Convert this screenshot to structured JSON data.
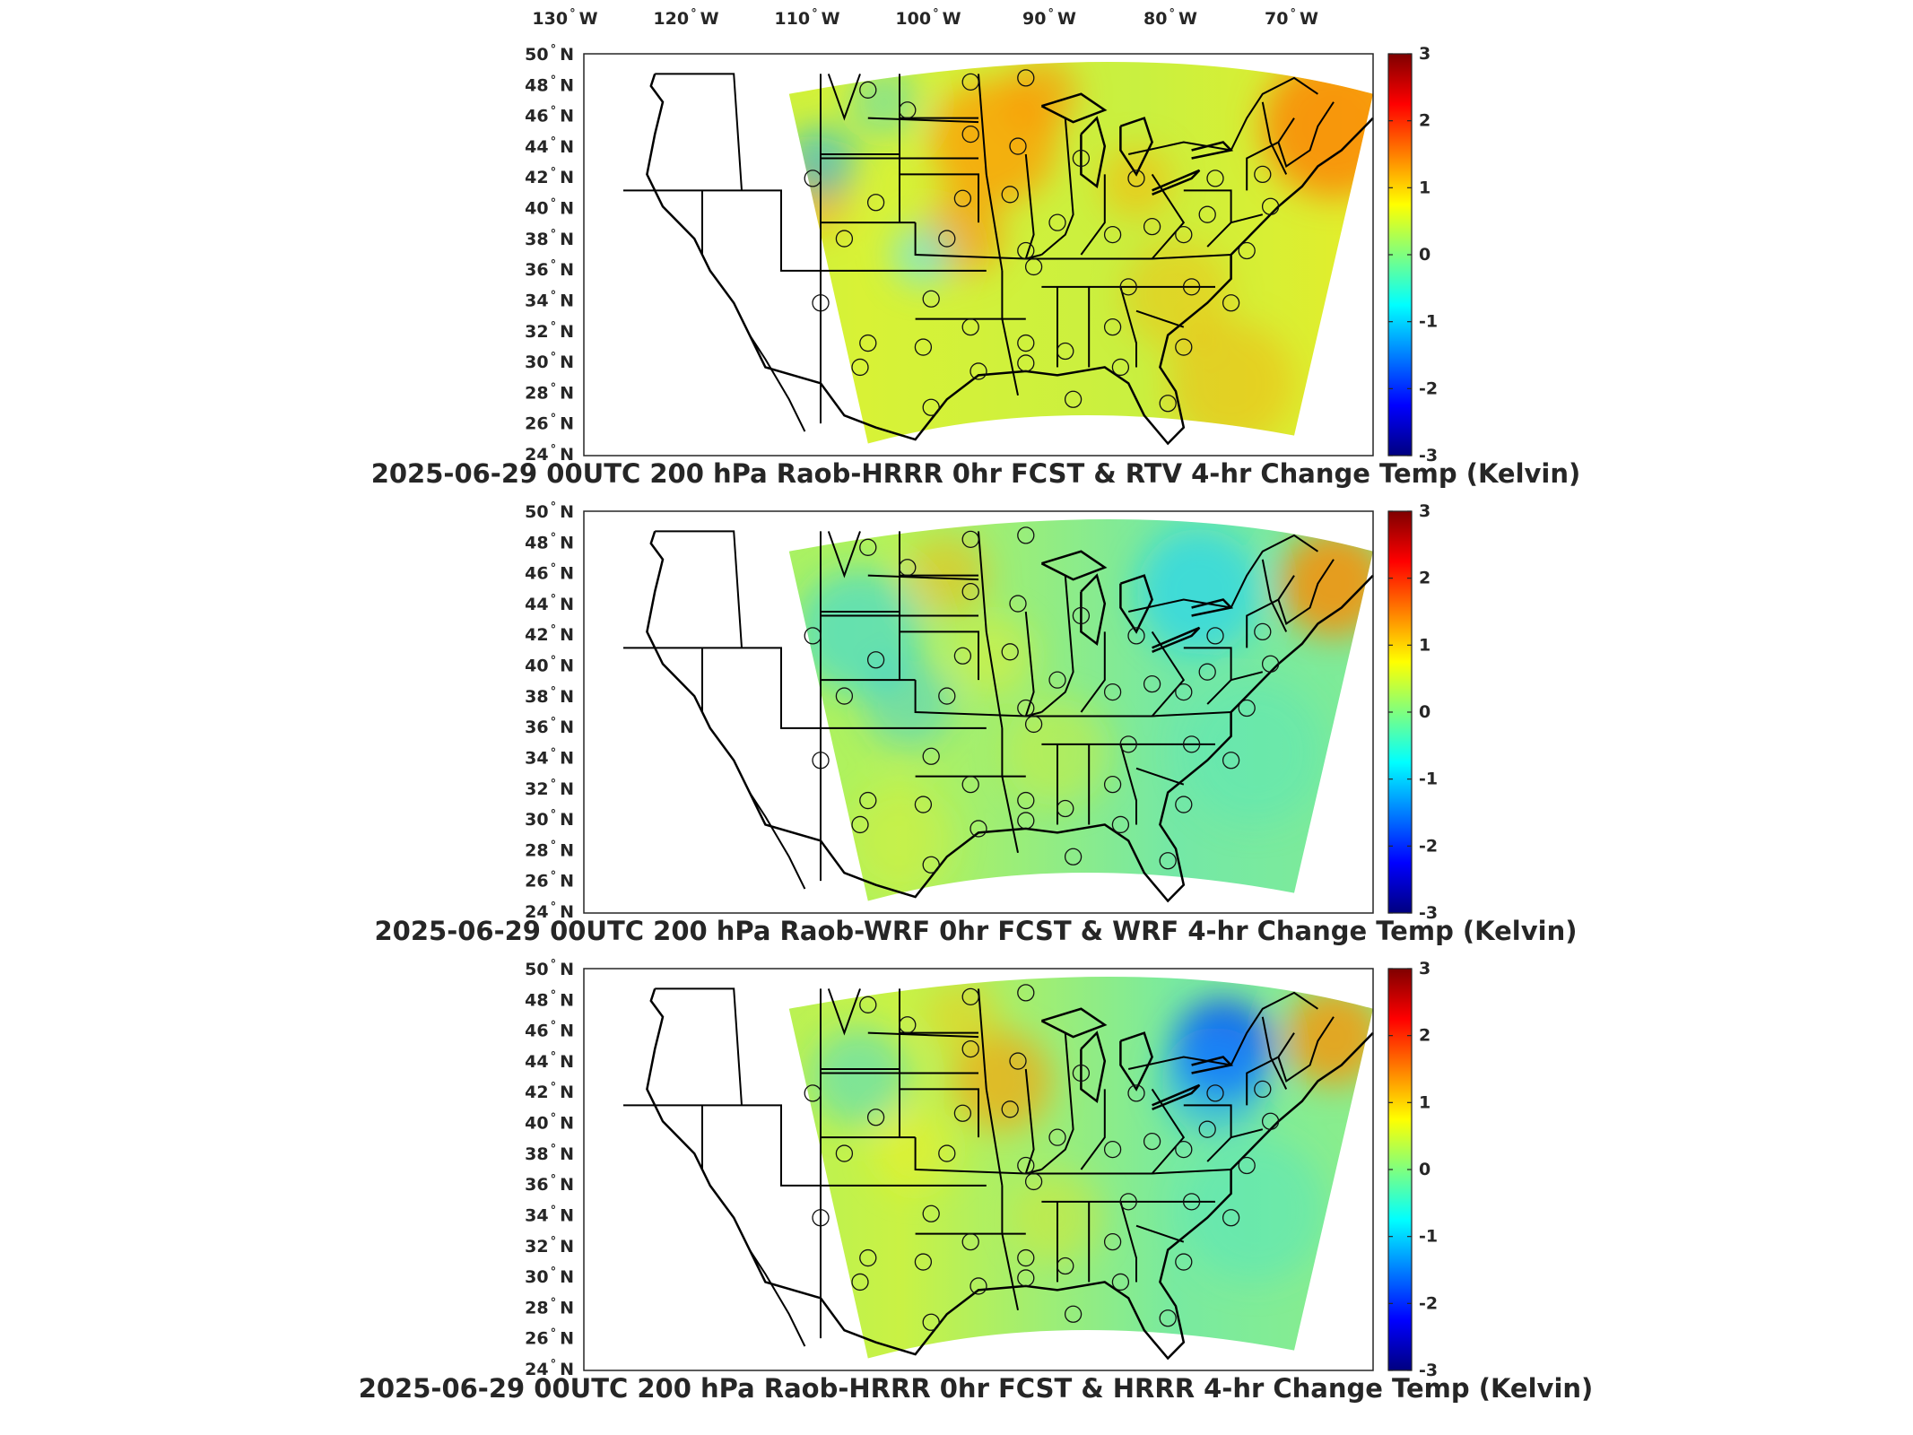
{
  "figure": {
    "top_lon_labels": [
      {
        "num": "130",
        "dir": "W"
      },
      {
        "num": "120",
        "dir": "W"
      },
      {
        "num": "110",
        "dir": "W"
      },
      {
        "num": "100",
        "dir": "W"
      },
      {
        "num": "90",
        "dir": "W"
      },
      {
        "num": "80",
        "dir": "W"
      },
      {
        "num": "70",
        "dir": "W"
      }
    ],
    "lat_labels": [
      {
        "num": "50",
        "dir": "N"
      },
      {
        "num": "48",
        "dir": "N"
      },
      {
        "num": "46",
        "dir": "N"
      },
      {
        "num": "44",
        "dir": "N"
      },
      {
        "num": "42",
        "dir": "N"
      },
      {
        "num": "40",
        "dir": "N"
      },
      {
        "num": "38",
        "dir": "N"
      },
      {
        "num": "36",
        "dir": "N"
      },
      {
        "num": "34",
        "dir": "N"
      },
      {
        "num": "32",
        "dir": "N"
      },
      {
        "num": "30",
        "dir": "N"
      },
      {
        "num": "28",
        "dir": "N"
      },
      {
        "num": "26",
        "dir": "N"
      },
      {
        "num": "24",
        "dir": "N"
      }
    ],
    "colorbar": {
      "ticks": [
        "3",
        "2",
        "1",
        "0",
        "-1",
        "-2",
        "-3"
      ],
      "range": [
        -3,
        3
      ],
      "colormap": [
        "#00007f",
        "#0000ff",
        "#007fff",
        "#00ffff",
        "#7fff7f",
        "#ffff00",
        "#ff7f00",
        "#ff0000",
        "#7f0000"
      ]
    },
    "panels": [
      {
        "title": "2025-06-29 00UTC 200 hPa Raob-HRRR 0hr FCST & RTV 4-hr Change Temp (Kelvin)",
        "pattern": "warm"
      },
      {
        "title": "2025-06-29 00UTC 200 hPa Raob-WRF 0hr FCST & WRF 4-hr Change Temp (Kelvin)",
        "pattern": "neutral"
      },
      {
        "title": "2025-06-29 00UTC 200 hPa Raob-HRRR 0hr FCST & HRRR 4-hr Change Temp (Kelvin)",
        "pattern": "mixed"
      }
    ]
  }
}
